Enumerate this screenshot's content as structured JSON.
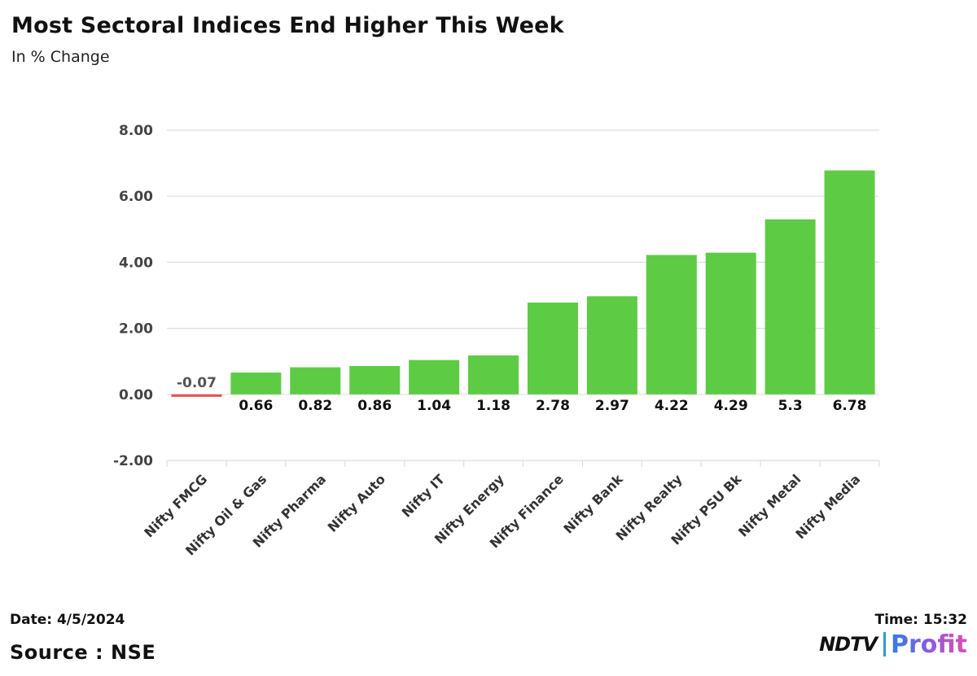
{
  "chart_data": {
    "type": "bar",
    "title": "Most Sectoral Indices End Higher This Week",
    "subtitle": "In % Change",
    "categories": [
      "Nifty FMCG",
      "Nifty Oil & Gas",
      "Nifty Pharma",
      "Nifty Auto",
      "Nifty IT",
      "Nifty Energy",
      "Nifty Finance",
      "Nifty Bank",
      "Nifty Realty",
      "Nifty PSU Bk",
      "Nifty Metal",
      "Nifty Media"
    ],
    "values": [
      -0.07,
      0.66,
      0.82,
      0.86,
      1.04,
      1.18,
      2.78,
      2.97,
      4.22,
      4.29,
      5.3,
      6.78
    ],
    "value_labels": [
      "-0.07",
      "0.66",
      "0.82",
      "0.86",
      "1.04",
      "1.18",
      "2.78",
      "2.97",
      "4.22",
      "4.29",
      "5.3",
      "6.78"
    ],
    "ylim": [
      -2,
      8
    ],
    "yticks": [
      8,
      6,
      4,
      2,
      0,
      -2
    ],
    "ytick_labels": [
      "8.00",
      "6.00",
      "4.00",
      "2.00",
      "0.00",
      "-2.00"
    ],
    "xlabel": "",
    "ylabel": "",
    "grid": true,
    "legend": "none",
    "colors": {
      "positive": "#5ecb45",
      "negative": "#e05252",
      "grid": "#dddddd"
    }
  },
  "footer": {
    "date": "Date: 4/5/2024",
    "source": "Source : NSE",
    "time": "Time: 15:32"
  },
  "brand": {
    "ndtv": "NDTV",
    "profit": "Profit"
  }
}
